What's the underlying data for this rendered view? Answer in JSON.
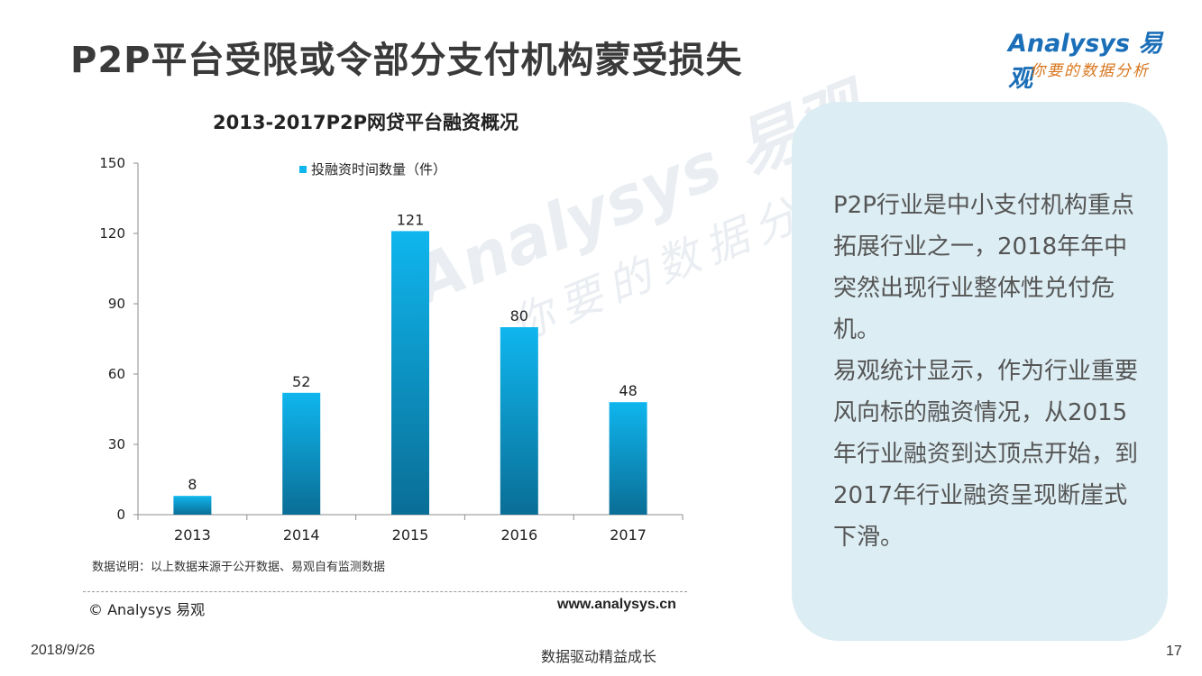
{
  "slide": {
    "title": "P2P平台受限或令部分支付机构蒙受损失",
    "logo_main": "Analysys 易观",
    "logo_sub": "你要的数据分析"
  },
  "watermark": {
    "main": "Analysys 易观",
    "sub": "你要的数据分析"
  },
  "chart_data": {
    "type": "bar",
    "title": "2013-2017P2P网贷平台融资概况",
    "categories": [
      "2013",
      "2014",
      "2015",
      "2016",
      "2017"
    ],
    "series": [
      {
        "name": "投融资时间数量（件）",
        "values": [
          8,
          52,
          121,
          80,
          48
        ]
      }
    ],
    "ylim": [
      0,
      150
    ],
    "yticks": [
      0,
      30,
      60,
      90,
      120,
      150
    ],
    "ytick_labels": [
      "0",
      "30",
      "60",
      "90",
      "120",
      "150"
    ],
    "grid": false,
    "legend_position": "top",
    "bar_color_top": "#0fb6ee",
    "bar_color_bottom": "#0a6e96"
  },
  "notes": {
    "data_note": "数据说明：以上数据来源于公开数据、易观自有监测数据",
    "copyright": "© Analysys 易观",
    "website": "www.analysys.cn"
  },
  "panel": {
    "background": "#dcedf3",
    "paragraph1": "P2P行业是中小支付机构重点拓展行业之一，2018年年中突然出现行业整体性兑付危机。",
    "paragraph2": "易观统计显示，作为行业重要风向标的融资情况，从2015年行业融资到达顶点开始，到2017年行业融资呈现断崖式下滑。"
  },
  "footer": {
    "date": "2018/9/26",
    "slogan": "数据驱动精益成长",
    "page_number": "17"
  }
}
